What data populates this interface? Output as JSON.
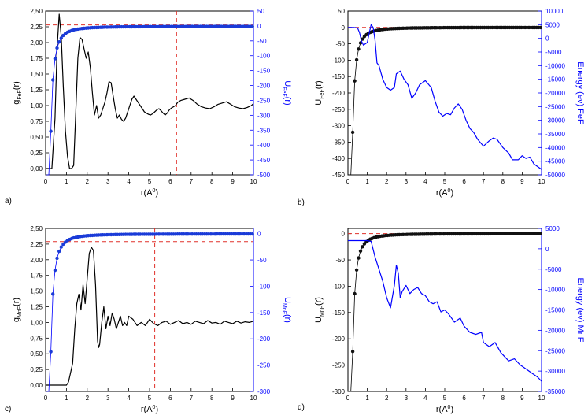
{
  "colors": {
    "black": "#000000",
    "blue": "#0000ff",
    "red": "#e0302a",
    "point_blue": "#1a3bd8",
    "point_black": "#111111"
  },
  "chart_data": [
    {
      "id": "a",
      "panel_label": "a)",
      "type": "line",
      "xlabel": "r(A",
      "xlabel_sup": "0",
      "xlabel_end": ")",
      "ylabel_left": "g",
      "ylabel_left_sub": "FeF",
      "ylabel_left_end": "(r)",
      "ylabel_right": "U",
      "ylabel_right_sub": "FeF",
      "ylabel_right_end": "(r)",
      "xlim": [
        0,
        10
      ],
      "ylim_left": [
        -0.1,
        2.5
      ],
      "ylim_right": [
        -500,
        50
      ],
      "xticks": [
        0,
        1,
        2,
        3,
        4,
        5,
        6,
        7,
        8,
        9,
        10
      ],
      "yticks_left": [
        0,
        0.25,
        0.5,
        0.75,
        1,
        1.25,
        1.5,
        1.75,
        2,
        2.25,
        2.5
      ],
      "yticks_left_labels": [
        "0,00",
        "0,25",
        "0,50",
        "0,75",
        "1,00",
        "1,25",
        "1,50",
        "1,75",
        "2,00",
        "2,25",
        "2,50"
      ],
      "yticks_right": [
        50,
        0,
        -50,
        -100,
        -150,
        -200,
        -250,
        -300,
        -350,
        -400,
        -450,
        -500
      ],
      "hline_left": 2.28,
      "vline_x": 6.3,
      "series_left": {
        "name": "g_FeF(r)",
        "color": "#000000",
        "x": [
          0,
          0.3,
          0.45,
          0.55,
          0.65,
          0.75,
          0.85,
          0.95,
          1.05,
          1.15,
          1.25,
          1.35,
          1.45,
          1.55,
          1.65,
          1.75,
          1.85,
          1.95,
          2.05,
          2.15,
          2.25,
          2.35,
          2.45,
          2.55,
          2.65,
          2.75,
          2.85,
          2.95,
          3.05,
          3.15,
          3.25,
          3.35,
          3.45,
          3.55,
          3.65,
          3.75,
          3.85,
          3.95,
          4.05,
          4.15,
          4.25,
          4.35,
          4.45,
          4.55,
          4.65,
          4.75,
          4.85,
          4.95,
          5.05,
          5.15,
          5.25,
          5.35,
          5.45,
          5.55,
          5.65,
          5.75,
          5.85,
          5.95,
          6.05,
          6.15,
          6.25,
          6.35,
          6.5,
          6.7,
          6.9,
          7.1,
          7.3,
          7.5,
          7.7,
          7.9,
          8.1,
          8.3,
          8.5,
          8.7,
          8.9,
          9.1,
          9.3,
          9.5,
          9.7,
          9.9,
          10
        ],
        "values": [
          0,
          0,
          0.8,
          1.9,
          2.45,
          2.1,
          1.3,
          0.6,
          0.2,
          0,
          0,
          0.05,
          0.9,
          1.75,
          2.08,
          2.05,
          1.9,
          1.75,
          1.85,
          1.6,
          1.2,
          0.85,
          1,
          0.8,
          0.85,
          0.95,
          1.05,
          1.2,
          1.38,
          1.36,
          1.15,
          0.95,
          0.8,
          0.85,
          0.78,
          0.75,
          0.8,
          0.9,
          1,
          1.1,
          1.15,
          1.1,
          1.05,
          1,
          0.95,
          0.9,
          0.88,
          0.86,
          0.85,
          0.87,
          0.9,
          0.93,
          0.95,
          0.92,
          0.88,
          0.85,
          0.88,
          0.93,
          0.96,
          0.98,
          1,
          1.05,
          1.08,
          1.1,
          1.12,
          1.08,
          1.02,
          0.98,
          0.96,
          0.95,
          0.98,
          1.02,
          1.04,
          1.06,
          1.02,
          0.98,
          0.96,
          0.95,
          0.97,
          1,
          1.03
        ]
      },
      "series_right": {
        "name": "U_FeF(r)",
        "color": "#0000ff",
        "marker": "circle",
        "x_start": 0.05,
        "x_end": 10,
        "x_step": 0.1,
        "asymptote": -1.5,
        "scale": 22,
        "point_every": 1
      }
    },
    {
      "id": "b",
      "panel_label": "b)",
      "type": "line",
      "xlabel": "r(A",
      "xlabel_sup": "0",
      "xlabel_end": ")",
      "ylabel_left": "U",
      "ylabel_left_sub": "FeF",
      "ylabel_left_end": "(r)",
      "ylabel_right": "Energy (ev) FeF",
      "ylabel_right_sub": "",
      "ylabel_right_end": "",
      "xlim": [
        0,
        10
      ],
      "ylim_left": [
        -450,
        50
      ],
      "ylim_right": [
        -50000,
        10000
      ],
      "xticks": [
        0,
        1,
        2,
        3,
        4,
        5,
        6,
        7,
        8,
        9,
        10
      ],
      "yticks_left": [
        50,
        0,
        -50,
        -100,
        -150,
        -200,
        -250,
        -300,
        -350,
        -400,
        -450
      ],
      "yticks_left_labels": [
        "50",
        "0",
        "-50",
        "-100",
        "-150",
        "-200",
        "-250",
        "-300",
        "-350",
        "-400",
        "-450"
      ],
      "yticks_right": [
        10000,
        5000,
        0,
        -5000,
        -10000,
        -15000,
        -20000,
        -25000,
        -30000,
        -35000,
        -40000,
        -45000,
        -50000
      ],
      "hline_left": 0,
      "series_left": {
        "name": "U_FeF(r)",
        "color": "#000000",
        "marker": "circle",
        "x_start": 0.05,
        "x_end": 10,
        "x_step": 0.1,
        "asymptote": 0,
        "scale": 20,
        "point_every": 1
      },
      "series_right": {
        "name": "Energy (ev) FeF",
        "color": "#0000ff",
        "x": [
          0,
          0.3,
          0.5,
          0.6,
          0.7,
          0.8,
          0.9,
          1,
          1.1,
          1.2,
          1.3,
          1.4,
          1.5,
          1.6,
          1.8,
          2,
          2.2,
          2.4,
          2.5,
          2.7,
          2.9,
          3.1,
          3.3,
          3.5,
          3.7,
          4,
          4.3,
          4.5,
          4.7,
          4.9,
          5.1,
          5.3,
          5.5,
          5.7,
          5.9,
          6.1,
          6.3,
          6.5,
          6.7,
          7,
          7.3,
          7.5,
          7.7,
          8,
          8.3,
          8.5,
          8.8,
          9,
          9.2,
          9.4,
          9.6,
          9.8,
          10
        ],
        "values": [
          4000,
          4000,
          3800,
          2000,
          -1000,
          -2500,
          -2000,
          -1500,
          2000,
          5000,
          4000,
          -500,
          -9000,
          -10000,
          -15000,
          -18000,
          -19000,
          -18000,
          -13000,
          -12000,
          -15000,
          -17000,
          -22000,
          -20000,
          -17000,
          -15500,
          -18000,
          -23000,
          -27000,
          -28500,
          -27500,
          -28000,
          -25500,
          -24000,
          -26000,
          -30000,
          -33000,
          -34500,
          -37000,
          -39500,
          -37500,
          -36500,
          -37000,
          -40000,
          -42000,
          -44500,
          -44500,
          -43000,
          -44000,
          -43500,
          -46000,
          -47000,
          -48000
        ]
      }
    },
    {
      "id": "c",
      "panel_label": "c)",
      "type": "line",
      "xlabel": "r(A",
      "xlabel_sup": "0",
      "xlabel_end": ")",
      "ylabel_left": "g",
      "ylabel_left_sub": "MnF",
      "ylabel_left_end": "(r)",
      "ylabel_right": "U",
      "ylabel_right_sub": "MnF",
      "ylabel_right_end": "(r)",
      "xlim": [
        0,
        10
      ],
      "ylim_left": [
        -0.1,
        2.5
      ],
      "ylim_right": [
        -300,
        10
      ],
      "xticks": [
        0,
        1,
        2,
        3,
        4,
        5,
        6,
        7,
        8,
        9,
        10
      ],
      "yticks_left": [
        0,
        0.25,
        0.5,
        0.75,
        1,
        1.25,
        1.5,
        1.75,
        2,
        2.25,
        2.5
      ],
      "yticks_left_labels": [
        "0,00",
        "0,25",
        "0,50",
        "0,75",
        "1,00",
        "1,25",
        "1,50",
        "1,75",
        "2,00",
        "2,25",
        "2,50"
      ],
      "yticks_right": [
        0,
        -50,
        -100,
        -150,
        -200,
        -250,
        -300
      ],
      "hline_left": 2.29,
      "vline_x": 5.25,
      "series_left": {
        "name": "g_MnF(r)",
        "color": "#000000",
        "x": [
          0,
          1,
          1.1,
          1.2,
          1.3,
          1.4,
          1.5,
          1.6,
          1.7,
          1.8,
          1.9,
          2,
          2.1,
          2.2,
          2.3,
          2.4,
          2.5,
          2.55,
          2.6,
          2.7,
          2.8,
          2.9,
          3,
          3.1,
          3.2,
          3.3,
          3.4,
          3.5,
          3.6,
          3.7,
          3.8,
          3.9,
          4,
          4.2,
          4.4,
          4.6,
          4.8,
          5,
          5.2,
          5.4,
          5.6,
          5.8,
          6,
          6.2,
          6.4,
          6.6,
          6.8,
          7,
          7.2,
          7.4,
          7.6,
          7.8,
          8,
          8.2,
          8.4,
          8.6,
          8.8,
          9,
          9.2,
          9.4,
          9.6,
          9.8,
          10
        ],
        "values": [
          0,
          0,
          0.05,
          0.2,
          0.35,
          0.9,
          1.3,
          1.45,
          1.2,
          1.6,
          1.3,
          1.7,
          2.1,
          2.2,
          2.15,
          1.6,
          0.7,
          0.6,
          0.65,
          1,
          1.25,
          0.9,
          1.1,
          0.95,
          1.15,
          1.05,
          0.9,
          1.0,
          1.1,
          0.95,
          1.0,
          0.95,
          1.1,
          1.05,
          0.95,
          1.0,
          0.95,
          1.05,
          0.98,
          0.95,
          1.0,
          1.02,
          0.97,
          1.0,
          1.03,
          0.98,
          1.0,
          0.97,
          1.02,
          1.0,
          0.98,
          1.03,
          0.99,
          1.0,
          0.97,
          1.02,
          1.0,
          0.98,
          1.02,
          0.99,
          1.01,
          1.0,
          1.02
        ]
      },
      "series_right": {
        "name": "U_MnF(r)",
        "color": "#0000ff",
        "marker": "circle",
        "x_start": 0.05,
        "x_end": 10,
        "x_step": 0.1,
        "asymptote": -0.5,
        "scale": 14,
        "point_every": 1
      }
    },
    {
      "id": "d",
      "panel_label": "d)",
      "type": "line",
      "xlabel": "r(A",
      "xlabel_sup": "0",
      "xlabel_end": ")",
      "ylabel_left": "U",
      "ylabel_left_sub": "MnF",
      "ylabel_left_end": "(r)",
      "ylabel_right": "Energy (ev) MnF",
      "ylabel_right_sub": "",
      "ylabel_right_end": "",
      "xlim": [
        0,
        10
      ],
      "ylim_left": [
        -300,
        10
      ],
      "ylim_right": [
        -35000,
        5000
      ],
      "xticks": [
        0,
        1,
        2,
        3,
        4,
        5,
        6,
        7,
        8,
        9,
        10
      ],
      "yticks_left": [
        0,
        -50,
        -100,
        -150,
        -200,
        -250,
        -300
      ],
      "yticks_left_labels": [
        "0",
        "-50",
        "-100",
        "-150",
        "-200",
        "-250",
        "-300"
      ],
      "yticks_right": [
        5000,
        0,
        -5000,
        -10000,
        -15000,
        -20000,
        -25000,
        -30000,
        -35000
      ],
      "hline_left": 0,
      "series_left": {
        "name": "U_MnF(r)",
        "color": "#000000",
        "marker": "circle",
        "x_start": 0.05,
        "x_end": 10,
        "x_step": 0.1,
        "asymptote": 0,
        "scale": 14,
        "point_every": 1
      },
      "series_right": {
        "name": "Energy (ev) MnF",
        "color": "#0000ff",
        "x": [
          0,
          0.5,
          1,
          1.2,
          1.4,
          1.6,
          1.8,
          2,
          2.2,
          2.4,
          2.5,
          2.6,
          2.7,
          2.8,
          3,
          3.2,
          3.4,
          3.6,
          3.8,
          4,
          4.2,
          4.4,
          4.6,
          4.8,
          5,
          5.2,
          5.5,
          5.8,
          6,
          6.3,
          6.6,
          6.9,
          7,
          7.3,
          7.6,
          7.9,
          8,
          8.3,
          8.6,
          8.9,
          9.2,
          9.5,
          9.8,
          10
        ],
        "values": [
          2000,
          2000,
          2000,
          1800,
          -2000,
          -5000,
          -8000,
          -12000,
          -14500,
          -9000,
          -4000,
          -6000,
          -12000,
          -10500,
          -9000,
          -11000,
          -10000,
          -9500,
          -11000,
          -11500,
          -13000,
          -13500,
          -13000,
          -15500,
          -15000,
          -16000,
          -18000,
          -17000,
          -19000,
          -20500,
          -21000,
          -20500,
          -23000,
          -24000,
          -23000,
          -25500,
          -26000,
          -27500,
          -27000,
          -28500,
          -29500,
          -30500,
          -31500,
          -32500
        ]
      }
    }
  ]
}
